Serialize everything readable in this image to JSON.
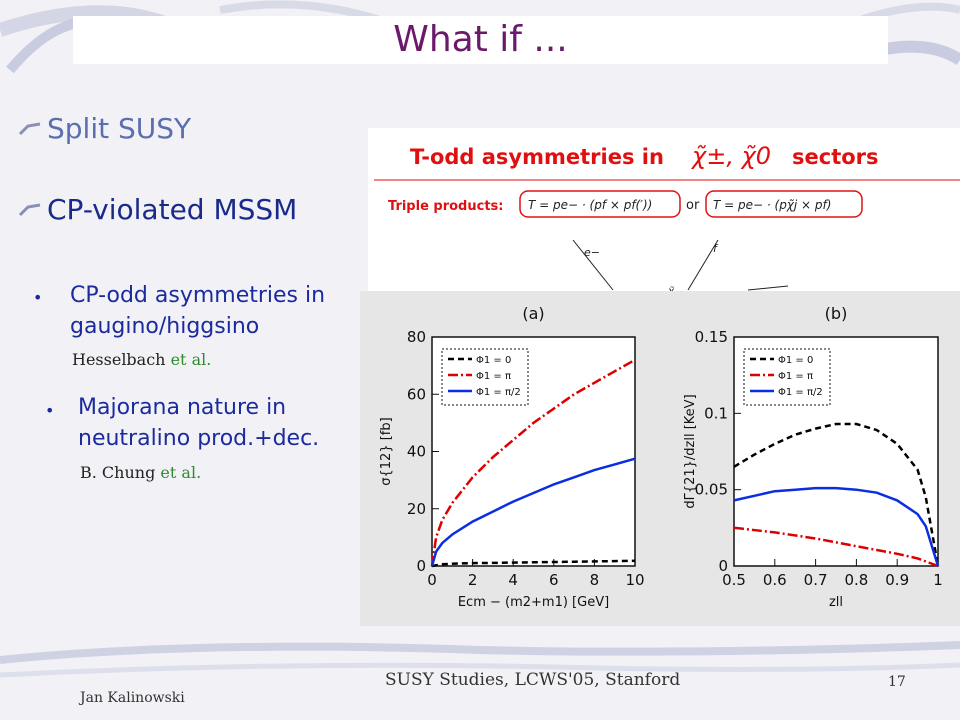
{
  "title": "What if ...",
  "bullets": [
    {
      "text": "Split SUSY",
      "color": "#5b6fb0"
    },
    {
      "text": "CP-violated MSSM",
      "color": "#1a2a8a"
    }
  ],
  "subpoints": [
    {
      "line1": "CP-odd asymmetries in",
      "line2": "gaugino/higgsino",
      "cite_author": "Hesselbach",
      "cite_etal": "et al."
    },
    {
      "line1": "Majorana nature in",
      "line2": "neutralino prod.+dec.",
      "cite_author": "B. Chung",
      "cite_etal": "et al."
    }
  ],
  "figure_top": {
    "heading_prefix": "T-odd asymmetries in",
    "heading_particles": "χ̃±, χ̃0",
    "heading_suffix": "sectors",
    "triple_label": "Triple products:",
    "formula1": "T = pe− · (pf × pf(′))",
    "or": "or",
    "formula2": "T = pe− · (pχ̃j × pf)",
    "diagram_labels": [
      "e−",
      "f",
      "χ̃"
    ]
  },
  "chart_data": [
    {
      "type": "line",
      "panel_label": "(a)",
      "xlabel": "Ecm − (m2+m1) [GeV]",
      "ylabel": "σ{12} [fb]",
      "xlim": [
        0,
        10
      ],
      "ylim": [
        0,
        80
      ],
      "xticks": [
        "0",
        "2",
        "4",
        "6",
        "8",
        "10"
      ],
      "yticks": [
        "0",
        "20",
        "40",
        "60",
        "80"
      ],
      "legend": [
        "Φ1 = 0",
        "Φ1 = π",
        "Φ1 = π/2"
      ],
      "series": [
        {
          "name": "Φ1 = 0",
          "color": "#000000",
          "dash": "6,4",
          "x": [
            0,
            0.5,
            1,
            2,
            3,
            4,
            5,
            6,
            7,
            8,
            9,
            10
          ],
          "y": [
            0,
            0.6,
            0.8,
            1.0,
            1.1,
            1.2,
            1.3,
            1.4,
            1.5,
            1.6,
            1.7,
            1.8
          ]
        },
        {
          "name": "Φ1 = π",
          "color": "#dd0000",
          "dash": "10,3,2,3",
          "x": [
            0,
            0.2,
            0.5,
            1,
            2,
            3,
            4,
            5,
            6,
            7,
            8,
            9,
            10
          ],
          "y": [
            0,
            10,
            16,
            22,
            31,
            38,
            44,
            50,
            55,
            60,
            64,
            68,
            72
          ]
        },
        {
          "name": "Φ1 = π/2",
          "color": "#0a2ee0",
          "dash": "",
          "x": [
            0,
            0.2,
            0.5,
            1,
            2,
            3,
            4,
            5,
            6,
            7,
            8,
            9,
            10
          ],
          "y": [
            0,
            5,
            8,
            11,
            15.5,
            19,
            22.5,
            25.5,
            28.5,
            31,
            33.5,
            35.5,
            37.5
          ]
        }
      ]
    },
    {
      "type": "line",
      "panel_label": "(b)",
      "xlabel": "zll",
      "ylabel": "dΓ{21}/dzll [KeV]",
      "xlim": [
        0.5,
        1
      ],
      "ylim": [
        0,
        0.15
      ],
      "xticks": [
        "0.5",
        "0.6",
        "0.7",
        "0.8",
        "0.9",
        "1"
      ],
      "yticks": [
        "0",
        "0.05",
        "0.1",
        "0.15"
      ],
      "legend": [
        "Φ1 = 0",
        "Φ1 = π",
        "Φ1 = π/2"
      ],
      "series": [
        {
          "name": "Φ1 = 0",
          "color": "#000000",
          "dash": "6,4",
          "x": [
            0.5,
            0.55,
            0.6,
            0.65,
            0.7,
            0.75,
            0.8,
            0.85,
            0.9,
            0.95,
            0.97,
            1.0
          ],
          "y": [
            0.065,
            0.073,
            0.08,
            0.086,
            0.09,
            0.093,
            0.093,
            0.089,
            0.08,
            0.063,
            0.045,
            0.0
          ]
        },
        {
          "name": "Φ1 = π",
          "color": "#dd0000",
          "dash": "10,3,2,3",
          "x": [
            0.5,
            0.6,
            0.7,
            0.8,
            0.9,
            0.95,
            1.0
          ],
          "y": [
            0.025,
            0.022,
            0.018,
            0.013,
            0.008,
            0.005,
            0.0
          ]
        },
        {
          "name": "Φ1 = π/2",
          "color": "#0a2ee0",
          "dash": "",
          "x": [
            0.5,
            0.55,
            0.6,
            0.65,
            0.7,
            0.75,
            0.8,
            0.85,
            0.9,
            0.95,
            0.97,
            1.0
          ],
          "y": [
            0.043,
            0.046,
            0.049,
            0.05,
            0.051,
            0.051,
            0.05,
            0.048,
            0.043,
            0.034,
            0.026,
            0.0
          ]
        }
      ]
    }
  ],
  "footer": {
    "author": "Jan Kalinowski",
    "center": "SUSY Studies,  LCWS'05, Stanford",
    "page": "17"
  }
}
